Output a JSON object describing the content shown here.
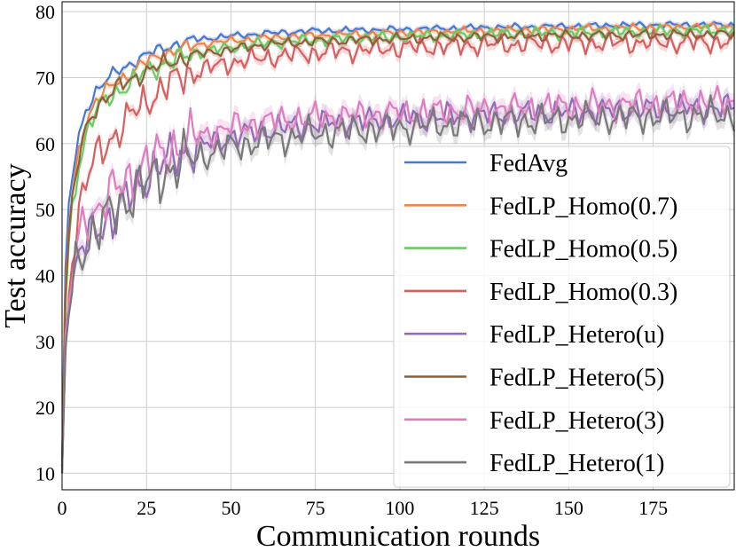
{
  "chart_data": {
    "type": "line",
    "title": "",
    "xlabel": "Communication rounds",
    "ylabel": "Test accuracy",
    "xlim": [
      0,
      199
    ],
    "ylim": [
      7.5,
      81.5
    ],
    "xticks": [
      0,
      25,
      50,
      75,
      100,
      125,
      150,
      175
    ],
    "yticks": [
      10,
      20,
      30,
      40,
      50,
      60,
      70,
      80
    ],
    "grid": true,
    "legend_position": "lower-right",
    "x": [
      0,
      1,
      2,
      3,
      5,
      7,
      10,
      15,
      20,
      25,
      30,
      35,
      40,
      50,
      60,
      75,
      100,
      125,
      150,
      175,
      199
    ],
    "series": [
      {
        "name": "FedAvg",
        "color": "#4878cf",
        "band": 0.4,
        "jitter": 0.5,
        "values": [
          11,
          41,
          51,
          55,
          61,
          65,
          68,
          70.5,
          72,
          73.5,
          74.5,
          75.2,
          75.8,
          76.3,
          76.7,
          77.1,
          77.3,
          77.6,
          77.8,
          78.0,
          78.0
        ]
      },
      {
        "name": "FedLP_Homo(0.7)",
        "color": "#ee854a",
        "band": 0.5,
        "jitter": 0.6,
        "values": [
          11,
          38,
          47,
          52,
          59,
          63,
          66.5,
          69,
          70.5,
          72.5,
          73.5,
          74.3,
          75.0,
          75.6,
          76.0,
          76.4,
          76.8,
          77.1,
          77.4,
          77.6,
          77.8
        ]
      },
      {
        "name": "FedLP_Homo(0.5)",
        "color": "#6acc64",
        "band": 0.5,
        "jitter": 0.9,
        "values": [
          11,
          35,
          45,
          50,
          57,
          61,
          65,
          67.5,
          69,
          71,
          72,
          73,
          73.8,
          74.6,
          75.2,
          75.7,
          76.2,
          76.6,
          76.8,
          77.0,
          77.3
        ]
      },
      {
        "name": "FedLP_Homo(0.3)",
        "color": "#d65f5f",
        "band": 0.8,
        "jitter": 1.6,
        "values": [
          10.5,
          28,
          37,
          43,
          50,
          54,
          58,
          61,
          64,
          66.5,
          68.5,
          70,
          71,
          72.3,
          73,
          73.8,
          74.5,
          75,
          75.2,
          75.3,
          75.4
        ]
      },
      {
        "name": "FedLP_Hetero(u)",
        "color": "#956cb4",
        "band": 1.2,
        "jitter": 2.0,
        "values": [
          10,
          30,
          35,
          38,
          43,
          45,
          47,
          49,
          52,
          55,
          57,
          58.5,
          59.5,
          61,
          62,
          63,
          63.8,
          64.3,
          64.8,
          65.2,
          65.5
        ]
      },
      {
        "name": "FedLP_Hetero(5)",
        "color": "#8c613c",
        "band": 0.5,
        "jitter": 0.8,
        "values": [
          11,
          37,
          46,
          51,
          58,
          62,
          65.5,
          68,
          69.5,
          71,
          72,
          72.8,
          73.5,
          74.3,
          75,
          75.5,
          75.9,
          76.2,
          76.4,
          76.5,
          76.6
        ]
      },
      {
        "name": "FedLP_Hetero(3)",
        "color": "#dc7ec0",
        "band": 1.2,
        "jitter": 2.2,
        "values": [
          10,
          31,
          36,
          40,
          46,
          48,
          50,
          52.5,
          55,
          57,
          58.5,
          60,
          61,
          62.5,
          63.3,
          64,
          64.6,
          65.2,
          65.7,
          66.1,
          66.4
        ]
      },
      {
        "name": "FedLP_Hetero(1)",
        "color": "#797979",
        "band": 1.3,
        "jitter": 2.4,
        "values": [
          10,
          29,
          34,
          38,
          43,
          45,
          47,
          49.5,
          52,
          54,
          55.5,
          57,
          58,
          59.5,
          60.5,
          61.5,
          62.5,
          63.2,
          63.7,
          64.1,
          64.4
        ]
      }
    ]
  }
}
